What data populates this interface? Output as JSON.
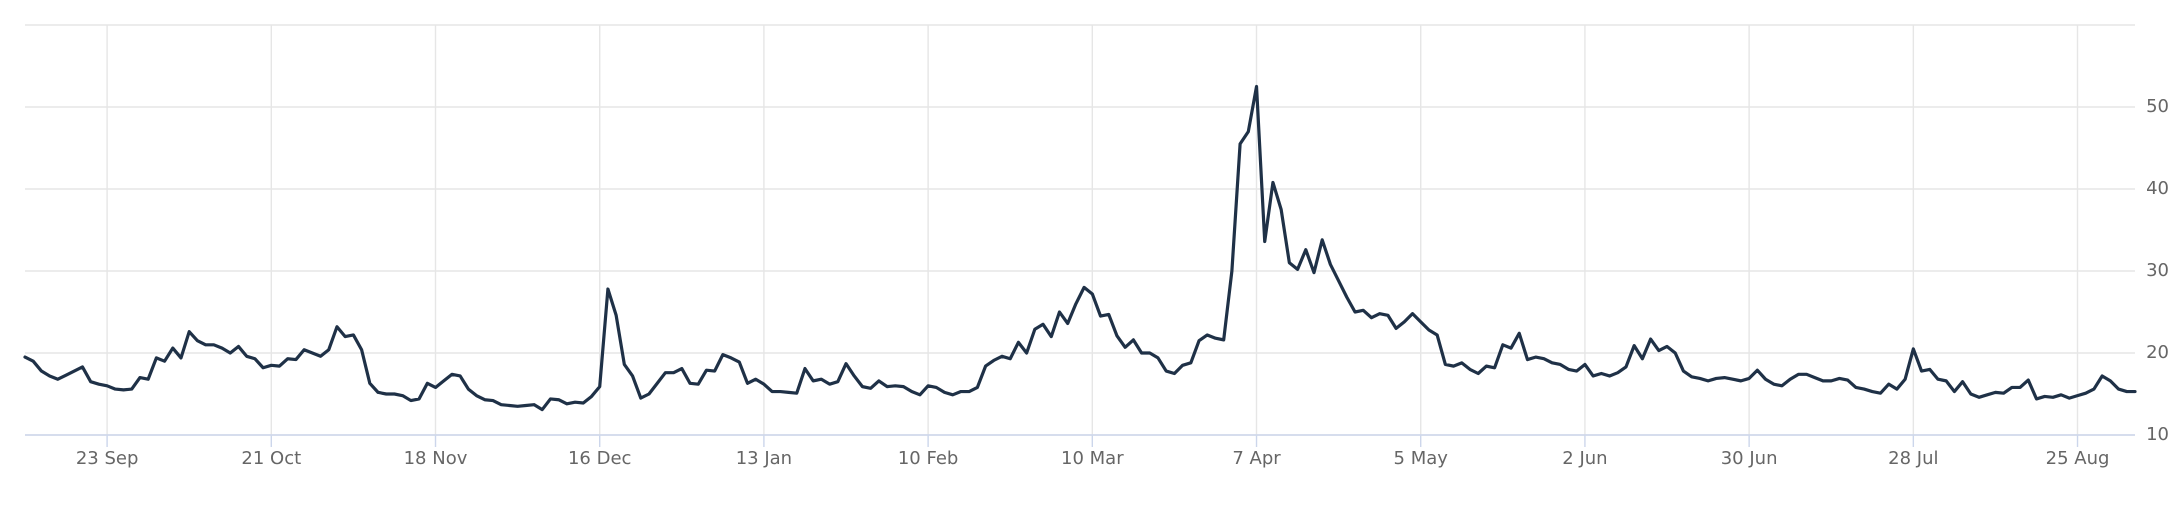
{
  "chart_data": {
    "type": "line",
    "categories": [
      null,
      null,
      null,
      null,
      null,
      null,
      null,
      null,
      null,
      null,
      "23 Sep",
      null,
      null,
      null,
      null,
      null,
      null,
      null,
      null,
      null,
      null,
      null,
      null,
      null,
      null,
      null,
      null,
      null,
      null,
      null,
      "21 Oct",
      null,
      null,
      null,
      null,
      null,
      null,
      null,
      null,
      null,
      null,
      null,
      null,
      null,
      null,
      null,
      null,
      null,
      null,
      null,
      "18 Nov",
      null,
      null,
      null,
      null,
      null,
      null,
      null,
      null,
      null,
      null,
      null,
      null,
      null,
      null,
      null,
      null,
      null,
      null,
      null,
      "16 Dec",
      null,
      null,
      null,
      null,
      null,
      null,
      null,
      null,
      null,
      null,
      null,
      null,
      null,
      null,
      null,
      null,
      null,
      null,
      null,
      "13 Jan",
      null,
      null,
      null,
      null,
      null,
      null,
      null,
      null,
      null,
      null,
      null,
      null,
      null,
      null,
      null,
      null,
      null,
      null,
      null,
      "10 Feb",
      null,
      null,
      null,
      null,
      null,
      null,
      null,
      null,
      null,
      null,
      null,
      null,
      null,
      null,
      null,
      null,
      null,
      null,
      null,
      "10 Mar",
      null,
      null,
      null,
      null,
      null,
      null,
      null,
      null,
      null,
      null,
      null,
      null,
      null,
      null,
      null,
      null,
      null,
      null,
      null,
      "7 Apr",
      null,
      null,
      null,
      null,
      null,
      null,
      null,
      null,
      null,
      null,
      null,
      null,
      null,
      null,
      null,
      null,
      null,
      null,
      null,
      "5 May",
      null,
      null,
      null,
      null,
      null,
      null,
      null,
      null,
      null,
      null,
      null,
      null,
      null,
      null,
      null,
      null,
      null,
      null,
      null,
      "2 Jun",
      null,
      null,
      null,
      null,
      null,
      null,
      null,
      null,
      null,
      null,
      null,
      null,
      null,
      null,
      null,
      null,
      null,
      null,
      null,
      "30 Jun",
      null,
      null,
      null,
      null,
      null,
      null,
      null,
      null,
      null,
      null,
      null,
      null,
      null,
      null,
      null,
      null,
      null,
      null,
      null,
      "28 Jul",
      null,
      null,
      null,
      null,
      null,
      null,
      null,
      null,
      null,
      null,
      null,
      null,
      null,
      null,
      null,
      null,
      null,
      null,
      null,
      "25 Aug",
      null,
      null,
      null,
      null,
      null,
      null,
      null
    ],
    "series": [
      {
        "color": "#1f3147",
        "values": [
          19.5,
          19,
          17.8,
          17.2,
          16.8,
          17.3,
          17.8,
          18.3,
          16.5,
          16.2,
          16,
          15.6,
          15.5,
          15.6,
          17,
          16.8,
          19.4,
          19,
          20.6,
          19.4,
          22.6,
          21.5,
          21,
          21,
          20.6,
          20,
          20.8,
          19.6,
          19.3,
          18.2,
          18.5,
          18.4,
          19.3,
          19.2,
          20.4,
          20,
          19.6,
          20.4,
          23.2,
          22,
          22.2,
          20.4,
          16.3,
          15.2,
          15,
          15,
          14.8,
          14.2,
          14.4,
          16.3,
          15.8,
          16.6,
          17.4,
          17.2,
          15.6,
          14.8,
          14.3,
          14.2,
          13.7,
          13.6,
          13.5,
          13.6,
          13.7,
          13.1,
          14.4,
          14.3,
          13.8,
          14,
          13.9,
          14.7,
          15.9,
          27.8,
          24.6,
          18.6,
          17.2,
          14.5,
          15,
          16.3,
          17.6,
          17.6,
          18.1,
          16.3,
          16.2,
          17.9,
          17.8,
          19.8,
          19.4,
          18.9,
          16.3,
          16.8,
          16.2,
          15.3,
          15.3,
          15.2,
          15.1,
          18.1,
          16.6,
          16.8,
          16.2,
          16.5,
          18.7,
          17.2,
          15.9,
          15.7,
          16.6,
          15.9,
          16,
          15.9,
          15.3,
          14.9,
          16,
          15.8,
          15.2,
          14.9,
          15.3,
          15.3,
          15.8,
          18.4,
          19.1,
          19.6,
          19.3,
          21.3,
          20,
          22.9,
          23.5,
          22,
          25,
          23.6,
          26,
          28,
          27.2,
          24.5,
          24.7,
          22.1,
          20.7,
          21.6,
          20,
          20,
          19.4,
          17.8,
          17.5,
          18.5,
          18.8,
          21.5,
          22.2,
          21.8,
          21.6,
          30,
          45.5,
          47,
          52.5,
          33.6,
          40.8,
          37.5,
          31,
          30.2,
          32.6,
          29.8,
          33.8,
          30.8,
          28.8,
          26.8,
          25,
          25.2,
          24.3,
          24.8,
          24.6,
          23,
          23.8,
          24.8,
          23.8,
          22.8,
          22.2,
          18.6,
          18.4,
          18.8,
          18,
          17.5,
          18.4,
          18.2,
          21,
          20.6,
          22.4,
          19.2,
          19.5,
          19.3,
          18.8,
          18.6,
          18,
          17.8,
          18.6,
          17.2,
          17.5,
          17.2,
          17.6,
          18.3,
          20.9,
          19.3,
          21.7,
          20.3,
          20.8,
          20,
          17.8,
          17.1,
          16.9,
          16.6,
          16.9,
          17,
          16.8,
          16.6,
          16.9,
          17.9,
          16.8,
          16.2,
          16,
          16.8,
          17.4,
          17.4,
          17,
          16.6,
          16.6,
          16.9,
          16.7,
          15.8,
          15.6,
          15.3,
          15.1,
          16.2,
          15.6,
          16.8,
          20.5,
          17.8,
          18,
          16.8,
          16.6,
          15.3,
          16.5,
          15,
          14.6,
          14.9,
          15.2,
          15.1,
          15.8,
          15.8,
          16.7,
          14.4,
          14.7,
          14.6,
          14.9,
          14.5,
          14.8,
          15.1,
          15.6,
          17.2,
          16.6,
          15.6,
          15.3,
          15.3
        ]
      }
    ],
    "ylim": [
      10,
      60
    ],
    "yticks": [
      10,
      20,
      30,
      40,
      50
    ],
    "y_axis_side": "right",
    "grid": true
  }
}
